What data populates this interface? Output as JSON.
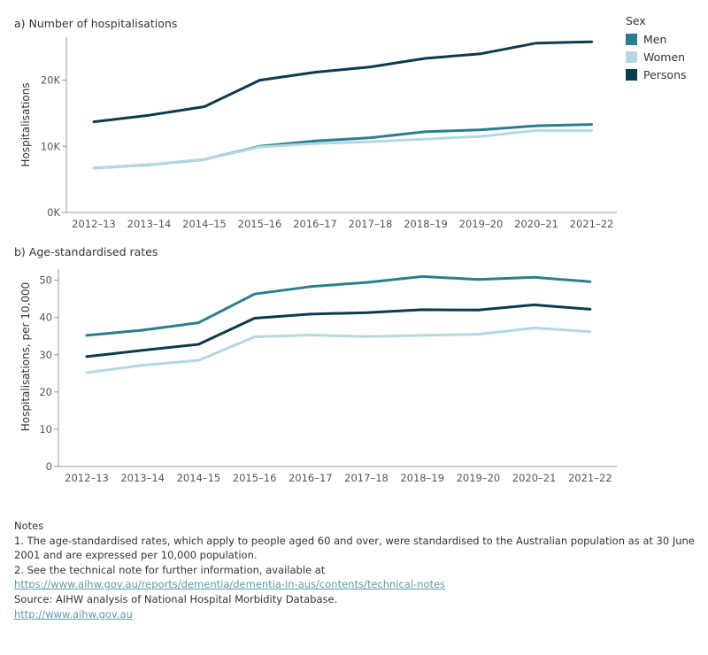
{
  "legend": {
    "title": "Sex",
    "items": [
      {
        "label": "Men",
        "color": "#2a7f8f"
      },
      {
        "label": "Women",
        "color": "#b4d7e2"
      },
      {
        "label": "Persons",
        "color": "#0d3a4d"
      }
    ]
  },
  "chart_data": [
    {
      "type": "line",
      "title": "a) Number of hospitalisations",
      "xlabel": "",
      "ylabel": "Hospitalisations",
      "categories": [
        "2012–13",
        "2013–14",
        "2014–15",
        "2015–16",
        "2016–17",
        "2017–18",
        "2018–19",
        "2019–20",
        "2020–21",
        "2021–22"
      ],
      "yticks": [
        0,
        10000,
        20000
      ],
      "ytick_labels": [
        "0K",
        "10K",
        "20K"
      ],
      "ylim": [
        0,
        26500
      ],
      "grid": false,
      "series": [
        {
          "name": "Men",
          "color": "#2a7f8f",
          "values": [
            6700,
            7200,
            8000,
            10000,
            10800,
            11300,
            12200,
            12500,
            13100,
            13300
          ]
        },
        {
          "name": "Women",
          "color": "#b4d7e2",
          "values": [
            6700,
            7200,
            8000,
            9900,
            10400,
            10700,
            11100,
            11500,
            12400,
            12400
          ]
        },
        {
          "name": "Persons",
          "color": "#0d3a4d",
          "values": [
            13700,
            14700,
            16000,
            20000,
            21200,
            22000,
            23300,
            24000,
            25600,
            25800
          ]
        }
      ]
    },
    {
      "type": "line",
      "title": "b) Age-standardised rates",
      "xlabel": "",
      "ylabel": "Hospitalisations, per 10,000",
      "categories": [
        "2012–13",
        "2013–14",
        "2014–15",
        "2015–16",
        "2016–17",
        "2017–18",
        "2018–19",
        "2019–20",
        "2020–21",
        "2021–22"
      ],
      "yticks": [
        0,
        10,
        20,
        30,
        40,
        50
      ],
      "ytick_labels": [
        "0",
        "10",
        "20",
        "30",
        "40",
        "50"
      ],
      "ylim": [
        0,
        53
      ],
      "grid": false,
      "series": [
        {
          "name": "Men",
          "color": "#2a7f8f",
          "values": [
            35.2,
            36.6,
            38.6,
            46.3,
            48.3,
            49.4,
            51.0,
            50.2,
            50.8,
            49.6
          ]
        },
        {
          "name": "Women",
          "color": "#b4d7e2",
          "values": [
            25.2,
            27.2,
            28.5,
            34.8,
            35.3,
            34.9,
            35.2,
            35.5,
            37.2,
            36.2
          ]
        },
        {
          "name": "Persons",
          "color": "#0d3a4d",
          "values": [
            29.5,
            31.2,
            32.8,
            39.8,
            40.9,
            41.3,
            42.1,
            42.0,
            43.4,
            42.2
          ]
        }
      ]
    }
  ],
  "notes": {
    "heading": "Notes",
    "note1": "1. The age-standardised rates, which apply to people aged 60 and over, were standardised to the Australian population as at 30 June 2001 and are expressed per 10,000 population.",
    "note2": "2. See the technical note for further information, available at",
    "note2_link": "https://www.aihw.gov.au/reports/dementia/dementia-in-aus/contents/technical-notes",
    "source": "Source:  AIHW analysis of National Hospital Morbidity Database.",
    "source_link": "http://www.aihw.gov.au"
  }
}
